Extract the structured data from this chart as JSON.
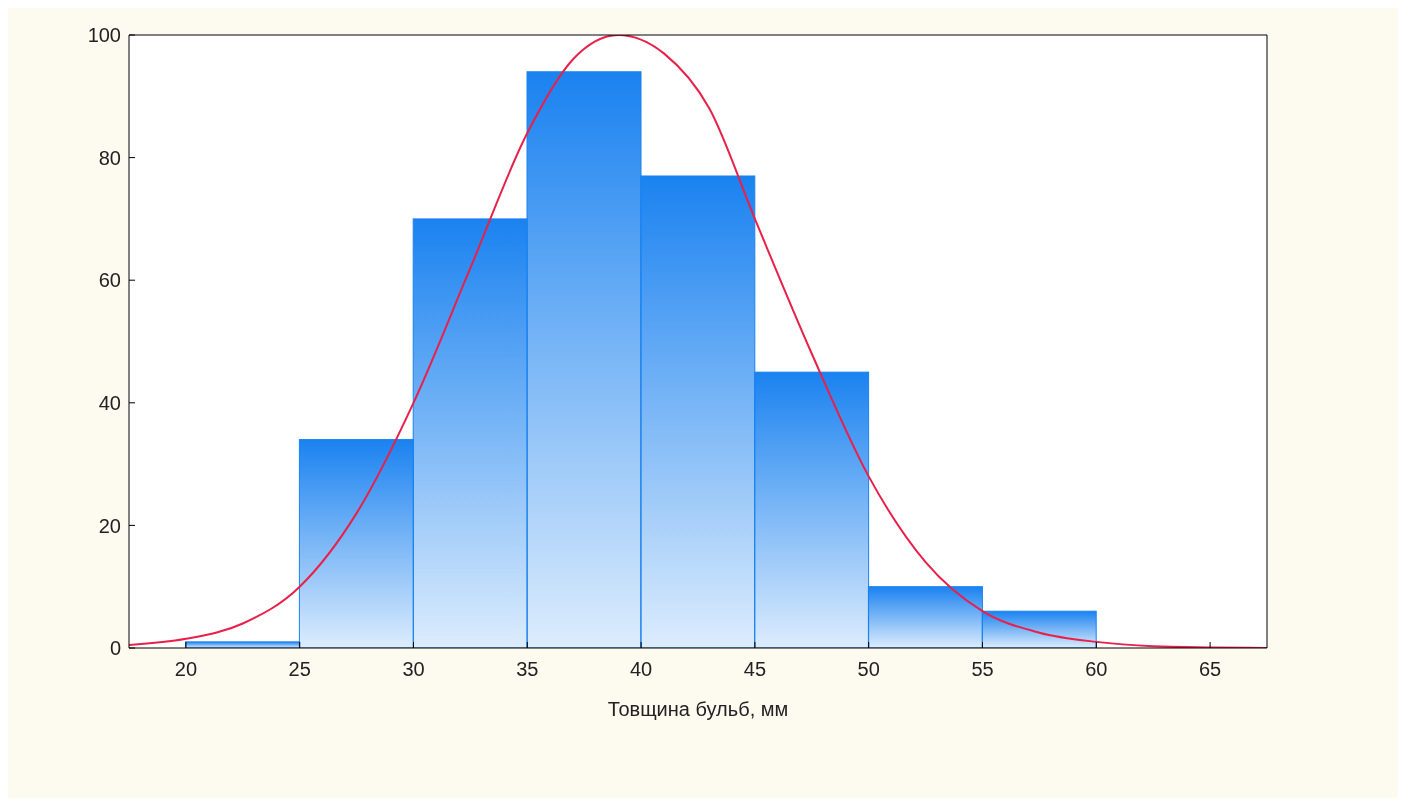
{
  "chart_data": {
    "type": "histogram",
    "xlabel": "Товщина бульб, мм",
    "bins": [
      20,
      25,
      30,
      35,
      40,
      45,
      50,
      55,
      60
    ],
    "values": [
      1,
      34,
      70,
      94,
      77,
      45,
      10,
      6
    ],
    "color": "#1a82f0",
    "series": [
      {
        "type": "line",
        "color": "#e8204a",
        "x": [
          17.5,
          20,
          22.5,
          25,
          27.5,
          30,
          32.5,
          35,
          37,
          39,
          41,
          43,
          45,
          47.5,
          50,
          52.5,
          55,
          57.5,
          60,
          62.5,
          65,
          67.5
        ],
        "values": [
          0.5,
          1.5,
          4,
          10,
          22,
          40,
          62,
          84,
          96,
          100,
          97,
          88,
          70,
          48,
          28,
          14,
          6,
          2.5,
          1,
          0.3,
          0.1,
          0
        ]
      }
    ],
    "xlim": [
      17.5,
      67.5
    ],
    "xticks": [
      20,
      25,
      30,
      35,
      40,
      45,
      50,
      55,
      60,
      65
    ],
    "ylim": [
      0,
      100
    ],
    "yticks": [
      0,
      20,
      40,
      60,
      80,
      100
    ]
  }
}
